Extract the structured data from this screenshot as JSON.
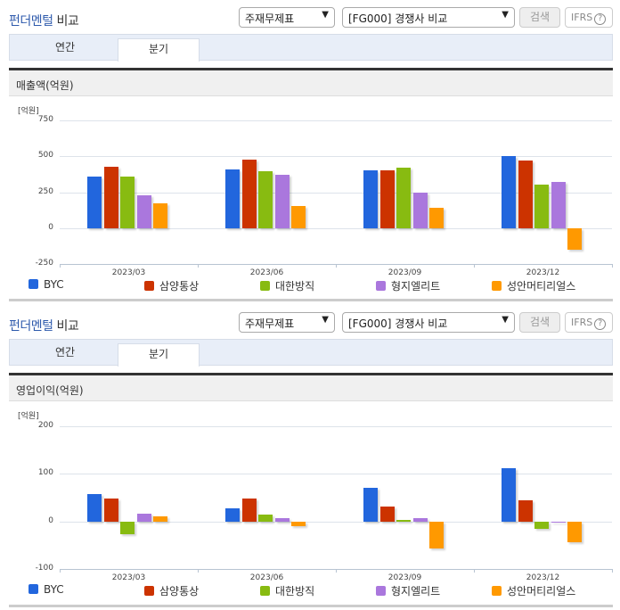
{
  "header": {
    "title_blue": "펀더멘털",
    "title_rest": " 비교",
    "select1": "주재무제표",
    "select2": "[FG000] 경쟁사 비교",
    "search_label": "검색",
    "ifrs_label": "IFRS",
    "help_icon": "?"
  },
  "tabs": [
    {
      "label": "연간"
    },
    {
      "label": "분기",
      "active": true
    }
  ],
  "colors": {
    "BYC": "#2266dd",
    "삼양통상": "#cc3300",
    "대한방직": "#88bb11",
    "형지엘리트": "#aa77dd",
    "성안머티리얼스": "#ff9900"
  },
  "legend": [
    "BYC",
    "삼양통상",
    "대한방직",
    "형지엘리트",
    "성안머티리얼스"
  ],
  "section1": {
    "subtitle": "매출액(억원)",
    "unit": "[억원]",
    "yticks": [
      "750",
      "500",
      "250",
      "0",
      "-250"
    ]
  },
  "section2": {
    "subtitle": "영업이익(억원)",
    "unit": "[억원]",
    "yticks": [
      "200",
      "100",
      "0",
      "-100"
    ]
  },
  "chart_data": [
    {
      "type": "bar",
      "title": "매출액(억원)",
      "ylabel": "[억원]",
      "categories": [
        "2023/03",
        "2023/06",
        "2023/09",
        "2023/12"
      ],
      "ylim": [
        -250,
        750
      ],
      "grid": true,
      "legend_position": "bottom",
      "series": [
        {
          "name": "BYC",
          "values": [
            357,
            410,
            400,
            500
          ]
        },
        {
          "name": "삼양통상",
          "values": [
            430,
            475,
            400,
            470
          ]
        },
        {
          "name": "대한방직",
          "values": [
            357,
            395,
            420,
            300
          ]
        },
        {
          "name": "형지엘리트",
          "values": [
            230,
            370,
            250,
            320
          ]
        },
        {
          "name": "성안머티리얼스",
          "values": [
            175,
            155,
            140,
            -150
          ]
        }
      ]
    },
    {
      "type": "bar",
      "title": "영업이익(억원)",
      "ylabel": "[억원]",
      "categories": [
        "2023/03",
        "2023/06",
        "2023/09",
        "2023/12"
      ],
      "ylim": [
        -100,
        200
      ],
      "grid": true,
      "legend_position": "bottom",
      "series": [
        {
          "name": "BYC",
          "values": [
            58,
            28,
            71,
            112
          ]
        },
        {
          "name": "삼양통상",
          "values": [
            49,
            49,
            31,
            45
          ]
        },
        {
          "name": "대한방직",
          "values": [
            -27,
            15,
            3,
            -15
          ]
        },
        {
          "name": "형지엘리트",
          "values": [
            17,
            6,
            7,
            -3
          ]
        },
        {
          "name": "성안머티리얼스",
          "values": [
            11,
            -10,
            -56,
            -44
          ]
        }
      ]
    }
  ]
}
